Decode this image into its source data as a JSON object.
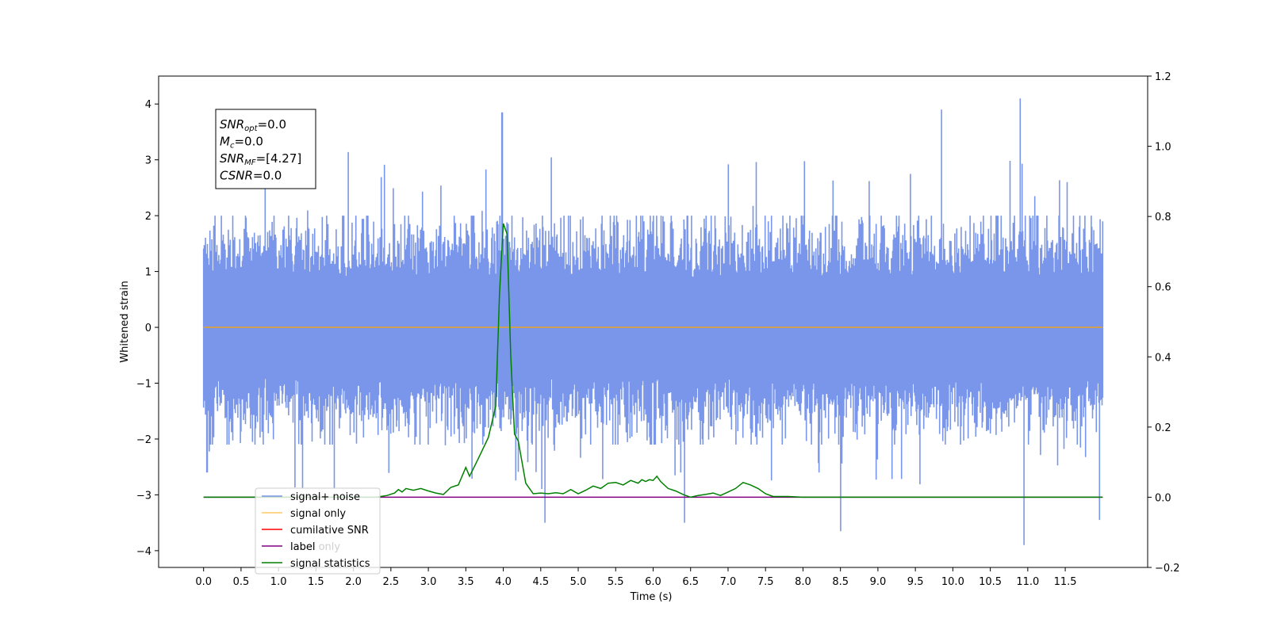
{
  "chart_data": {
    "type": "line",
    "xlabel": "Time (s)",
    "ylabel": "Whitened strain",
    "xlim": [
      -0.6,
      12.6
    ],
    "ylim_left": [
      -4.3,
      4.5
    ],
    "ylim_right": [
      -0.2,
      1.2
    ],
    "x_ticks": [
      "0.0",
      "0.5",
      "1.0",
      "1.5",
      "2.0",
      "2.5",
      "3.0",
      "3.5",
      "4.0",
      "4.5",
      "5.0",
      "5.5",
      "6.0",
      "6.5",
      "7.0",
      "7.5",
      "8.0",
      "8.5",
      "9.0",
      "9.5",
      "10.0",
      "10.5",
      "11.0",
      "11.5"
    ],
    "y_ticks_left": [
      "4",
      "3",
      "2",
      "1",
      "0",
      "−1",
      "−2",
      "−3",
      "−4"
    ],
    "y_ticks_right": [
      "1.2",
      "1.0",
      "0.8",
      "0.6",
      "0.4",
      "0.2",
      "0.0",
      "−0.2"
    ],
    "noise_envelope": {
      "duration_s": 12.0,
      "typical_range": [
        -1.8,
        2.0
      ],
      "spikes": [
        [
          0.05,
          -2.6
        ],
        [
          3.98,
          3.85
        ],
        [
          4.55,
          -3.5
        ],
        [
          6.42,
          -3.5
        ],
        [
          8.5,
          -3.65
        ],
        [
          9.85,
          3.9
        ],
        [
          10.9,
          4.1
        ],
        [
          10.95,
          -3.9
        ],
        [
          11.95,
          -3.45
        ]
      ]
    },
    "series": [
      {
        "name": "signal+ noise",
        "color": "#4169e1",
        "axis": "left",
        "note": "dense random noise"
      },
      {
        "name": "signal only",
        "color": "#ffa500",
        "axis": "left",
        "x": [
          0.0,
          12.0
        ],
        "y": [
          0.0,
          0.0
        ]
      },
      {
        "name": "cumilative SNR",
        "color": "#ff0000",
        "axis": "right",
        "x": [],
        "y": []
      },
      {
        "name": "label",
        "color": "#800080",
        "axis": "right",
        "x": [
          0.0,
          12.0
        ],
        "y": [
          0.0,
          0.0
        ]
      },
      {
        "name": "signal statistics",
        "color": "#008000",
        "axis": "right",
        "x": [
          0.0,
          2.3,
          2.45,
          2.55,
          2.6,
          2.65,
          2.7,
          2.8,
          2.9,
          3.0,
          3.1,
          3.2,
          3.3,
          3.4,
          3.5,
          3.55,
          3.62,
          3.7,
          3.8,
          3.9,
          3.95,
          4.0,
          4.05,
          4.1,
          4.15,
          4.2,
          4.25,
          4.3,
          4.35,
          4.4,
          4.5,
          4.6,
          4.7,
          4.8,
          4.9,
          5.0,
          5.05,
          5.1,
          5.2,
          5.3,
          5.4,
          5.5,
          5.6,
          5.7,
          5.8,
          5.85,
          5.9,
          5.95,
          6.0,
          6.05,
          6.1,
          6.2,
          6.3,
          6.4,
          6.5,
          6.6,
          6.7,
          6.8,
          6.9,
          7.0,
          7.1,
          7.2,
          7.3,
          7.4,
          7.5,
          7.6,
          7.8,
          8.0,
          12.0
        ],
        "y": [
          0.0,
          0.0,
          0.005,
          0.012,
          0.022,
          0.015,
          0.025,
          0.02,
          0.025,
          0.018,
          0.012,
          0.008,
          0.028,
          0.035,
          0.085,
          0.06,
          0.09,
          0.125,
          0.17,
          0.26,
          0.58,
          0.78,
          0.75,
          0.4,
          0.18,
          0.16,
          0.1,
          0.04,
          0.025,
          0.01,
          0.012,
          0.01,
          0.013,
          0.01,
          0.022,
          0.01,
          0.015,
          0.02,
          0.032,
          0.025,
          0.04,
          0.042,
          0.035,
          0.048,
          0.04,
          0.05,
          0.045,
          0.05,
          0.048,
          0.06,
          0.045,
          0.025,
          0.018,
          0.008,
          0.0,
          0.005,
          0.008,
          0.012,
          0.005,
          0.015,
          0.025,
          0.042,
          0.035,
          0.025,
          0.01,
          0.002,
          0.002,
          0.0,
          0.0
        ]
      }
    ],
    "annotation": [
      {
        "main": "SNR",
        "sub": "opt",
        "rest": "=0.0"
      },
      {
        "main": "M",
        "sub": "c",
        "rest": "=0.0"
      },
      {
        "main": "SNR",
        "sub": "MF",
        "rest": "=[4.27]"
      },
      {
        "main": "CSNR",
        "sub": "",
        "rest": "=0.0"
      }
    ],
    "legend_position": "lower-left",
    "legend_overlap_text": "label only"
  }
}
